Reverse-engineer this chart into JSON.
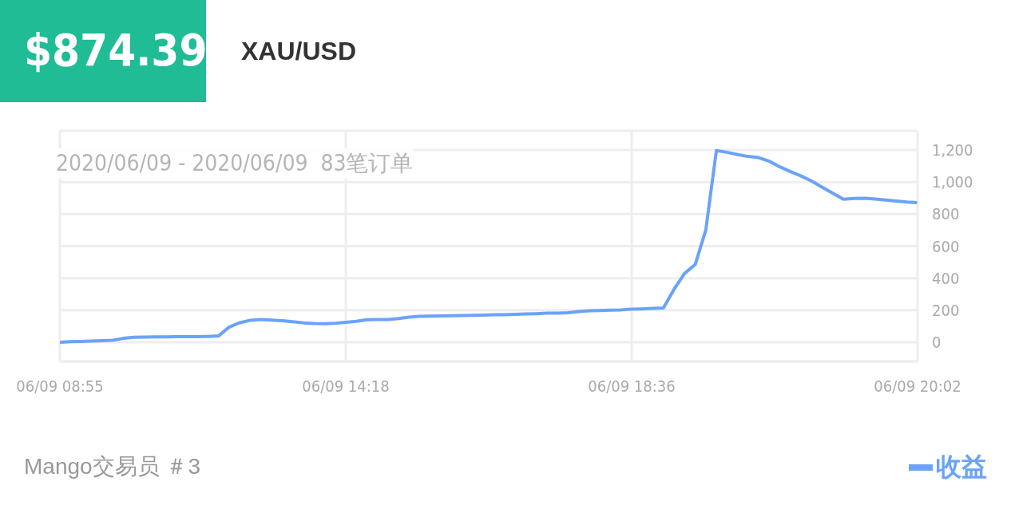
{
  "chart_data": {
    "type": "line",
    "title": "XAU/USD",
    "subtitle": "2020/06/09 - 2020/06/09  83笔订单",
    "annotations": [
      "$874.39",
      "Mango交易员 ＃3"
    ],
    "categories": [
      "06/09 08:55",
      null,
      null,
      null,
      null,
      null,
      null,
      null,
      null,
      null,
      null,
      null,
      null,
      null,
      null,
      null,
      null,
      null,
      null,
      null,
      null,
      null,
      null,
      null,
      null,
      null,
      null,
      "06/09 14:18",
      null,
      null,
      null,
      null,
      null,
      null,
      null,
      null,
      null,
      null,
      null,
      null,
      null,
      null,
      null,
      null,
      null,
      null,
      null,
      null,
      null,
      null,
      null,
      null,
      null,
      null,
      "06/09 18:36",
      null,
      null,
      null,
      null,
      null,
      null,
      null,
      null,
      null,
      null,
      null,
      null,
      null,
      null,
      null,
      null,
      null,
      null,
      null,
      null,
      null,
      null,
      null,
      null,
      null,
      null,
      "06/09 20:02"
    ],
    "series": [
      {
        "name": "收益",
        "color": "#6aa3f8",
        "values": [
          0,
          3,
          5,
          7,
          9,
          12,
          24,
          31,
          32,
          33,
          33,
          34,
          35,
          35,
          36,
          40,
          95,
          122,
          137,
          141,
          138,
          134,
          128,
          121,
          117,
          116,
          118,
          124,
          130,
          140,
          141,
          142,
          148,
          157,
          162,
          163,
          164,
          165,
          166,
          168,
          169,
          171,
          172,
          174,
          176,
          178,
          181,
          182,
          184,
          191,
          196,
          198,
          200,
          202,
          206,
          208,
          211,
          214,
          330,
          430,
          485,
          700,
          1197,
          1186,
          1172,
          1160,
          1153,
          1130,
          1095,
          1065,
          1038,
          1006,
          968,
          930,
          893,
          898,
          899,
          894,
          888,
          882,
          875,
          871
        ]
      }
    ],
    "ylim": [
      -120,
      1320
    ],
    "yticks": [
      0,
      200,
      400,
      600,
      800,
      {
        "value": 1000,
        "label": "1,000"
      },
      {
        "value": 1200,
        "label": "1,200"
      }
    ],
    "grid": true,
    "legend": "bottom right",
    "marker": "none",
    "line_style": "solid"
  }
}
